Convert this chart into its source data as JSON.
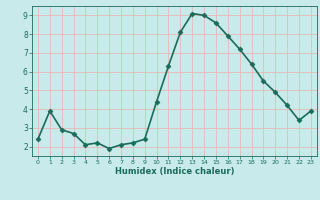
{
  "x": [
    0,
    1,
    2,
    3,
    4,
    5,
    6,
    7,
    8,
    9,
    10,
    11,
    12,
    13,
    14,
    15,
    16,
    17,
    18,
    19,
    20,
    21,
    22,
    23
  ],
  "y": [
    2.4,
    3.9,
    2.9,
    2.7,
    2.1,
    2.2,
    1.9,
    2.1,
    2.2,
    2.4,
    4.4,
    6.3,
    8.1,
    9.1,
    9.0,
    8.6,
    7.9,
    7.2,
    6.4,
    5.5,
    4.9,
    4.2,
    3.4,
    3.9
  ],
  "line_color": "#1a6b5a",
  "marker": "D",
  "marker_size": 2.5,
  "bg_color": "#c8eaea",
  "grid_color": "#e8b8b8",
  "xlabel": "Humidex (Indice chaleur)",
  "xlabel_color": "#1a6b5a",
  "tick_color": "#1a6b5a",
  "ylim": [
    1.5,
    9.5
  ],
  "xlim": [
    -0.5,
    23.5
  ],
  "yticks": [
    2,
    3,
    4,
    5,
    6,
    7,
    8,
    9
  ],
  "xticks": [
    0,
    1,
    2,
    3,
    4,
    5,
    6,
    7,
    8,
    9,
    10,
    11,
    12,
    13,
    14,
    15,
    16,
    17,
    18,
    19,
    20,
    21,
    22,
    23
  ],
  "linewidth": 1.2,
  "figsize": [
    3.2,
    2.0
  ],
  "dpi": 100
}
